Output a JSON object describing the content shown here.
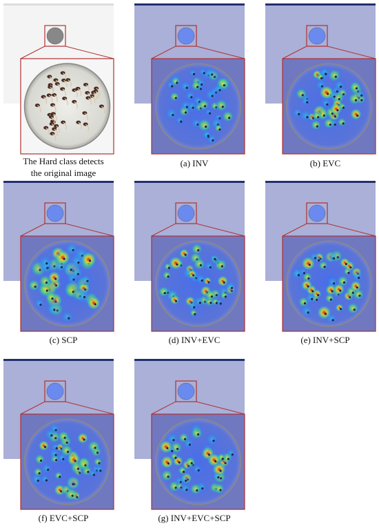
{
  "panels": [
    {
      "caption": [
        "The Hard class detects",
        "the original image"
      ]
    },
    {
      "caption": [
        "(a) INV"
      ]
    },
    {
      "caption": [
        "(b) EVC"
      ]
    },
    {
      "caption": [
        "(c) SCP"
      ]
    },
    {
      "caption": [
        "(d) INV+EVC"
      ]
    },
    {
      "caption": [
        "(e) INV+SCP"
      ]
    },
    {
      "caption": [
        "(f) EVC+SCP"
      ]
    },
    {
      "caption": [
        "(g) INV+EVC+SCP"
      ]
    }
  ]
}
